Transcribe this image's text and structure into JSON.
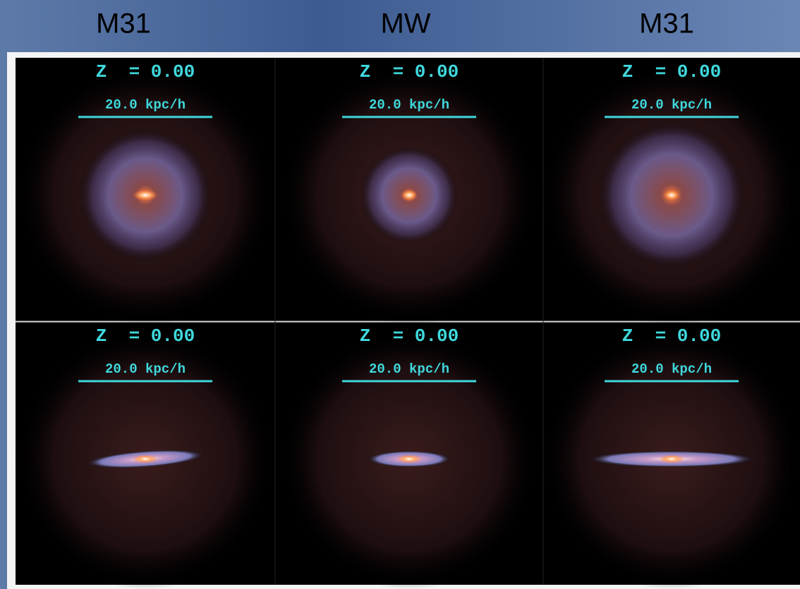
{
  "headers": [
    "M31",
    "MW",
    "M31"
  ],
  "panels": [
    {
      "redshift": "Z  = 0.00",
      "scale": "20.0 kpc/h"
    },
    {
      "redshift": "Z  = 0.00",
      "scale": "20.0 kpc/h"
    },
    {
      "redshift": "Z  = 0.00",
      "scale": "20.0 kpc/h"
    },
    {
      "redshift": "Z  = 0.00",
      "scale": "20.0 kpc/h"
    },
    {
      "redshift": "Z  = 0.00",
      "scale": "20.0 kpc/h"
    },
    {
      "redshift": "Z  = 0.00",
      "scale": "20.0 kpc/h"
    }
  ]
}
